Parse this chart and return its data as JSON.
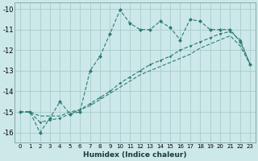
{
  "xlabel": "Humidex (Indice chaleur)",
  "bg_color": "#cce8e8",
  "grid_color": "#aacccc",
  "line_color": "#2d7b6e",
  "line1_x": [
    0,
    1,
    2,
    3,
    4,
    5,
    6,
    7,
    8,
    9,
    10,
    11,
    12,
    13,
    14,
    15,
    16,
    17,
    18,
    19,
    20,
    21,
    22,
    23
  ],
  "line1_y": [
    -15.0,
    -15.0,
    -16.0,
    -15.3,
    -14.5,
    -15.1,
    -15.0,
    -13.0,
    -12.3,
    -11.2,
    -10.05,
    -10.7,
    -11.0,
    -11.0,
    -10.6,
    -10.9,
    -11.5,
    -10.5,
    -10.6,
    -11.0,
    -11.0,
    -11.0,
    -11.6,
    -12.7
  ],
  "line2_x": [
    0,
    1,
    2,
    3,
    4,
    5,
    6,
    7,
    8,
    9,
    10,
    11,
    12,
    13,
    14,
    15,
    16,
    17,
    18,
    19,
    20,
    21,
    22,
    23
  ],
  "line2_y": [
    -15.0,
    -15.0,
    -15.5,
    -15.4,
    -15.3,
    -15.1,
    -14.9,
    -14.6,
    -14.3,
    -14.0,
    -13.6,
    -13.3,
    -13.0,
    -12.7,
    -12.5,
    -12.3,
    -12.0,
    -11.8,
    -11.6,
    -11.4,
    -11.2,
    -11.1,
    -11.5,
    -12.7
  ],
  "line3_x": [
    0,
    1,
    2,
    3,
    4,
    5,
    6,
    7,
    8,
    9,
    10,
    11,
    12,
    13,
    14,
    15,
    16,
    17,
    18,
    19,
    20,
    21,
    22,
    23
  ],
  "line3_y": [
    -15.0,
    -15.0,
    -15.2,
    -15.2,
    -15.2,
    -15.0,
    -14.9,
    -14.7,
    -14.4,
    -14.1,
    -13.8,
    -13.5,
    -13.2,
    -13.0,
    -12.8,
    -12.6,
    -12.4,
    -12.2,
    -11.9,
    -11.7,
    -11.5,
    -11.3,
    -11.8,
    -12.7
  ],
  "xlim": [
    -0.5,
    23.5
  ],
  "ylim": [
    -16.5,
    -9.7
  ],
  "xticks": [
    0,
    1,
    2,
    3,
    4,
    5,
    6,
    7,
    8,
    9,
    10,
    11,
    12,
    13,
    14,
    15,
    16,
    17,
    18,
    19,
    20,
    21,
    22,
    23
  ],
  "yticks": [
    -16,
    -15,
    -14,
    -13,
    -12,
    -11,
    -10
  ]
}
